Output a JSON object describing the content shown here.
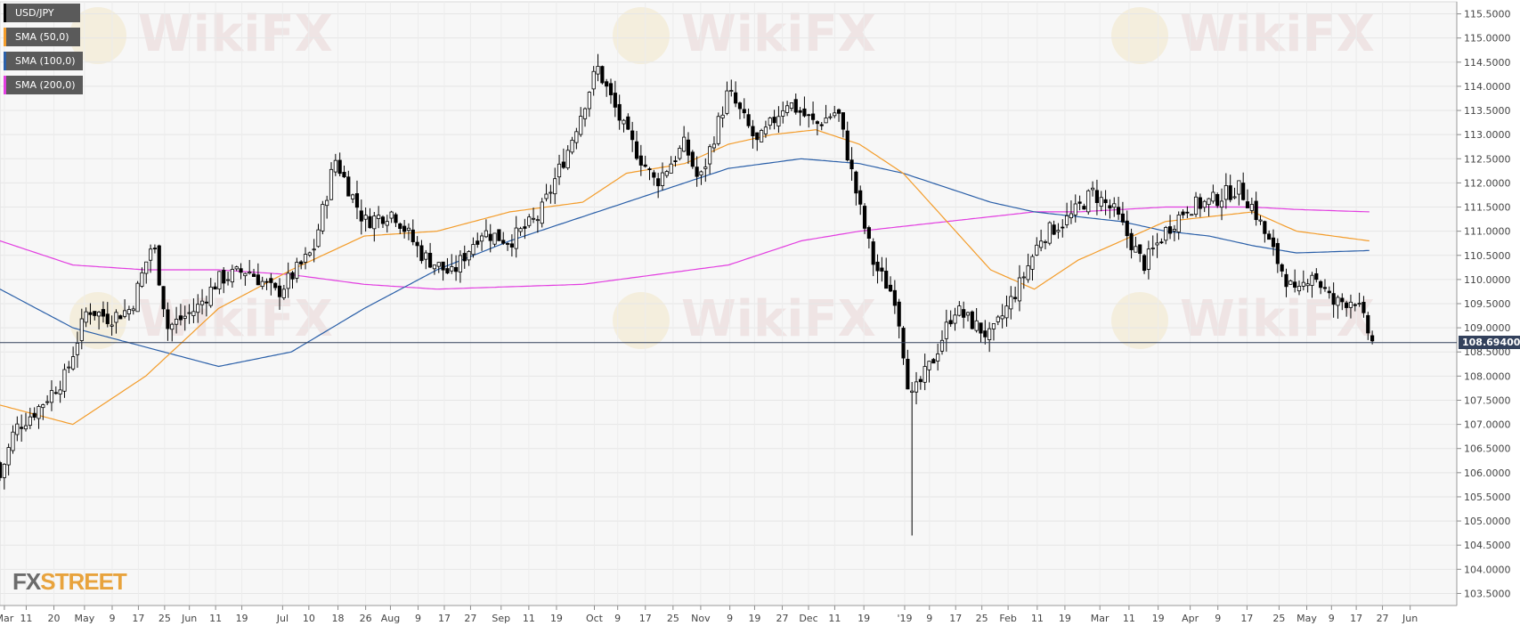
{
  "legend": [
    {
      "label": "USD/JPY",
      "color": "#000000"
    },
    {
      "label": "SMA (50,0)",
      "color": "#f39c2a"
    },
    {
      "label": "SMA (100,0)",
      "color": "#2a5fa8"
    },
    {
      "label": "SMA (200,0)",
      "color": "#e23ee0"
    }
  ],
  "price_label": "108.69400",
  "logo": {
    "fx": "FX",
    "street": "STREET"
  },
  "watermark": "WikiFX",
  "chart_data": {
    "type": "candlestick",
    "symbol": "USD/JPY",
    "ylim": [
      103.25,
      115.75
    ],
    "yticks": [
      103.5,
      104.0,
      104.5,
      105.0,
      105.5,
      106.0,
      106.5,
      107.0,
      107.5,
      108.0,
      108.5,
      109.0,
      109.5,
      110.0,
      110.5,
      111.0,
      111.5,
      112.0,
      112.5,
      113.0,
      113.5,
      114.0,
      114.5,
      115.0,
      115.5
    ],
    "ytick_labels": [
      "103.5000",
      "104.0000",
      "104.5000",
      "105.0000",
      "105.5000",
      "106.0000",
      "106.5000",
      "107.0000",
      "107.5000",
      "108.0000",
      "108.5000",
      "109.0000",
      "109.5000",
      "110.0000",
      "110.5000",
      "111.0000",
      "111.5000",
      "112.0000",
      "112.5000",
      "113.0000",
      "113.5000",
      "114.0000",
      "114.5000",
      "115.0000",
      "115.5000"
    ],
    "current_price": 108.694,
    "x_tick_labels": [
      "Mar",
      "11",
      "20",
      "May",
      "9",
      "17",
      "25",
      "Jun",
      "11",
      "19",
      "Jul",
      "10",
      "18",
      "26",
      "Aug",
      "9",
      "17",
      "27",
      "Sep",
      "11",
      "19",
      "Oct",
      "9",
      "17",
      "25",
      "Nov",
      "9",
      "19",
      "27",
      "Dec",
      "11",
      "19",
      "'19",
      "9",
      "17",
      "25",
      "Feb",
      "11",
      "19",
      "Mar",
      "11",
      "19",
      "Apr",
      "9",
      "17",
      "25",
      "May",
      "9",
      "17",
      "27",
      "Jun"
    ],
    "x_tick_pos": [
      0.003,
      0.018,
      0.037,
      0.058,
      0.077,
      0.095,
      0.113,
      0.13,
      0.148,
      0.166,
      0.194,
      0.212,
      0.232,
      0.251,
      0.268,
      0.287,
      0.305,
      0.323,
      0.344,
      0.363,
      0.382,
      0.408,
      0.424,
      0.443,
      0.462,
      0.481,
      0.501,
      0.518,
      0.537,
      0.555,
      0.573,
      0.593,
      0.621,
      0.638,
      0.656,
      0.674,
      0.692,
      0.712,
      0.731,
      0.755,
      0.775,
      0.795,
      0.817,
      0.836,
      0.856,
      0.878,
      0.897,
      0.914,
      0.931,
      0.949,
      0.968
    ],
    "anchors_close": [
      [
        0,
        105.9
      ],
      [
        0.01,
        106.9
      ],
      [
        0.025,
        107.3
      ],
      [
        0.045,
        108.0
      ],
      [
        0.06,
        109.4
      ],
      [
        0.075,
        109.2
      ],
      [
        0.09,
        109.4
      ],
      [
        0.105,
        110.8
      ],
      [
        0.115,
        109.0
      ],
      [
        0.135,
        109.4
      ],
      [
        0.15,
        110.0
      ],
      [
        0.17,
        110.2
      ],
      [
        0.19,
        109.7
      ],
      [
        0.215,
        110.6
      ],
      [
        0.23,
        112.5
      ],
      [
        0.25,
        111.2
      ],
      [
        0.27,
        111.4
      ],
      [
        0.29,
        110.5
      ],
      [
        0.31,
        110.1
      ],
      [
        0.33,
        111.0
      ],
      [
        0.35,
        110.8
      ],
      [
        0.37,
        111.3
      ],
      [
        0.39,
        112.7
      ],
      [
        0.41,
        114.4
      ],
      [
        0.43,
        113.0
      ],
      [
        0.45,
        112.0
      ],
      [
        0.47,
        112.8
      ],
      [
        0.48,
        112.0
      ],
      [
        0.5,
        113.9
      ],
      [
        0.52,
        112.8
      ],
      [
        0.54,
        113.7
      ],
      [
        0.56,
        113.2
      ],
      [
        0.575,
        113.5
      ],
      [
        0.59,
        111.5
      ],
      [
        0.6,
        110.3
      ],
      [
        0.615,
        109.6
      ],
      [
        0.625,
        107.5
      ],
      [
        0.64,
        108.3
      ],
      [
        0.655,
        109.4
      ],
      [
        0.68,
        108.8
      ],
      [
        0.7,
        109.9
      ],
      [
        0.715,
        110.9
      ],
      [
        0.735,
        111.3
      ],
      [
        0.75,
        111.8
      ],
      [
        0.765,
        111.4
      ],
      [
        0.785,
        110.3
      ],
      [
        0.8,
        111.0
      ],
      [
        0.815,
        111.5
      ],
      [
        0.83,
        111.6
      ],
      [
        0.85,
        111.9
      ],
      [
        0.86,
        111.5
      ],
      [
        0.875,
        110.5
      ],
      [
        0.89,
        109.6
      ],
      [
        0.9,
        110.2
      ],
      [
        0.915,
        109.5
      ],
      [
        0.93,
        109.6
      ],
      [
        0.942,
        108.7
      ]
    ],
    "sma50_anchors": [
      [
        0.0,
        107.4
      ],
      [
        0.05,
        107.0
      ],
      [
        0.1,
        108.0
      ],
      [
        0.15,
        109.4
      ],
      [
        0.2,
        110.2
      ],
      [
        0.25,
        110.9
      ],
      [
        0.3,
        111.0
      ],
      [
        0.35,
        111.4
      ],
      [
        0.4,
        111.6
      ],
      [
        0.43,
        112.2
      ],
      [
        0.47,
        112.4
      ],
      [
        0.5,
        112.8
      ],
      [
        0.53,
        113.0
      ],
      [
        0.56,
        113.1
      ],
      [
        0.59,
        112.8
      ],
      [
        0.62,
        112.2
      ],
      [
        0.65,
        111.2
      ],
      [
        0.68,
        110.2
      ],
      [
        0.71,
        109.8
      ],
      [
        0.74,
        110.4
      ],
      [
        0.77,
        110.8
      ],
      [
        0.8,
        111.2
      ],
      [
        0.83,
        111.3
      ],
      [
        0.86,
        111.4
      ],
      [
        0.89,
        111.0
      ],
      [
        0.94,
        110.8
      ]
    ],
    "sma100_anchors": [
      [
        0.0,
        109.8
      ],
      [
        0.05,
        109.0
      ],
      [
        0.1,
        108.6
      ],
      [
        0.15,
        108.2
      ],
      [
        0.2,
        108.5
      ],
      [
        0.25,
        109.4
      ],
      [
        0.3,
        110.2
      ],
      [
        0.35,
        110.8
      ],
      [
        0.4,
        111.3
      ],
      [
        0.45,
        111.8
      ],
      [
        0.5,
        112.3
      ],
      [
        0.55,
        112.5
      ],
      [
        0.59,
        112.4
      ],
      [
        0.62,
        112.2
      ],
      [
        0.65,
        111.9
      ],
      [
        0.68,
        111.6
      ],
      [
        0.71,
        111.4
      ],
      [
        0.74,
        111.3
      ],
      [
        0.77,
        111.2
      ],
      [
        0.8,
        111.0
      ],
      [
        0.83,
        110.9
      ],
      [
        0.86,
        110.7
      ],
      [
        0.89,
        110.55
      ],
      [
        0.94,
        110.6
      ]
    ],
    "sma200_anchors": [
      [
        0.0,
        110.8
      ],
      [
        0.05,
        110.3
      ],
      [
        0.1,
        110.2
      ],
      [
        0.15,
        110.2
      ],
      [
        0.2,
        110.1
      ],
      [
        0.25,
        109.9
      ],
      [
        0.3,
        109.8
      ],
      [
        0.35,
        109.85
      ],
      [
        0.4,
        109.9
      ],
      [
        0.45,
        110.1
      ],
      [
        0.5,
        110.3
      ],
      [
        0.55,
        110.8
      ],
      [
        0.59,
        111.0
      ],
      [
        0.62,
        111.1
      ],
      [
        0.65,
        111.2
      ],
      [
        0.68,
        111.3
      ],
      [
        0.71,
        111.4
      ],
      [
        0.74,
        111.4
      ],
      [
        0.77,
        111.45
      ],
      [
        0.8,
        111.5
      ],
      [
        0.83,
        111.5
      ],
      [
        0.86,
        111.5
      ],
      [
        0.89,
        111.45
      ],
      [
        0.94,
        111.4
      ]
    ],
    "special_lows": [
      [
        0.625,
        104.7
      ]
    ]
  }
}
